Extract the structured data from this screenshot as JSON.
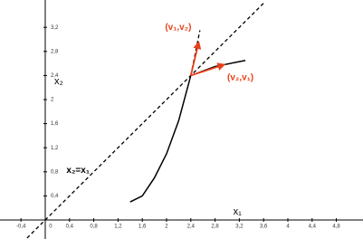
{
  "chart_data": {
    "type": "line",
    "xlim": [
      -0.746,
      5.239
    ],
    "ylim": [
      -0.316,
      3.654
    ],
    "xticks": [
      {
        "value": -0.4,
        "label": "-0,4"
      },
      0,
      {
        "value": 0.4,
        "label": "0,4"
      },
      {
        "value": 0.8,
        "label": "0,8"
      },
      {
        "value": 1.2,
        "label": "1,2"
      },
      {
        "value": 1.6,
        "label": "1,6"
      },
      2,
      {
        "value": 2.4,
        "label": "2,4"
      },
      {
        "value": 2.8,
        "label": "2,8"
      },
      {
        "value": 3.2,
        "label": "3,2"
      },
      {
        "value": 3.6,
        "label": "3,6"
      },
      4,
      {
        "value": 4.4,
        "label": "4,4"
      },
      {
        "value": 4.8,
        "label": "4,8"
      }
    ],
    "yticks": [
      {
        "value": 0.4,
        "label": "0,4"
      },
      {
        "value": 0.8,
        "label": "0,8"
      },
      {
        "value": 1.2,
        "label": "1,2"
      },
      {
        "value": 1.6,
        "label": "1,6"
      },
      2,
      {
        "value": 2.4,
        "label": "2,4"
      },
      {
        "value": 2.8,
        "label": "2,8"
      },
      {
        "value": 3.2,
        "label": "3,2"
      }
    ],
    "x_label": "x₁",
    "y_label": "x₂",
    "series": [
      {
        "name": "x₂=x₁",
        "color": "#000000",
        "dashed": true,
        "x": [
          -0.3,
          3.6
        ],
        "values": [
          -0.3,
          3.6
        ]
      },
      {
        "color": "#000000",
        "dashed": false,
        "x": [
          1.4,
          1.6,
          1.8,
          2.0,
          2.2,
          2.4,
          2.8,
          3.3
        ],
        "values": [
          0.3,
          0.4,
          0.7,
          1.1,
          1.65,
          2.4,
          2.55,
          2.65
        ]
      },
      {
        "color": "#000000",
        "dashed": true,
        "x": [
          2.4,
          2.55
        ],
        "values": [
          2.4,
          3.15
        ]
      }
    ],
    "arrows": [
      {
        "label": "(v₁,v₂)",
        "color": "#e8401c",
        "x": [
          2.4,
          2.53
        ],
        "y": [
          2.4,
          2.95
        ]
      },
      {
        "label": "(v₂,v₁)",
        "color": "#e8401c",
        "x": [
          2.4,
          2.95
        ],
        "y": [
          2.4,
          2.58
        ]
      }
    ]
  }
}
